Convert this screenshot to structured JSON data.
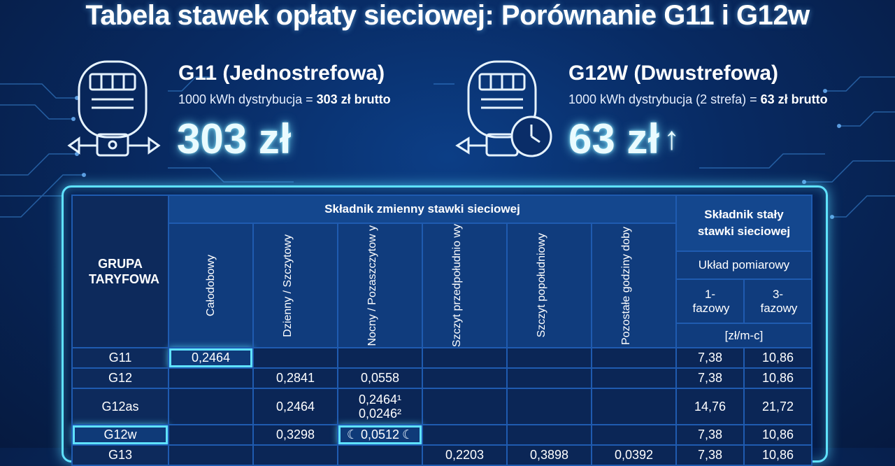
{
  "title": "Tabela stawek opłaty sieciowej: Porównanie G11 i G12w",
  "colors": {
    "accent": "#5fe2ff",
    "background": "#082a62",
    "cell_border": "#1f5bb0"
  },
  "left_panel": {
    "icon": "electric-meter-icon",
    "name": "G11 (Jednostrefowa)",
    "desc_prefix": "1000 kWh dystrybucja = ",
    "desc_bold": "303 zł brutto",
    "big_value": "303 zł"
  },
  "right_panel": {
    "icon": "electric-meter-clock-icon",
    "name": "G12W (Dwustrefowa)",
    "desc_prefix": "1000 kWh dystrybucja (2 strefa) = ",
    "desc_bold": "63 zł brutto",
    "big_value": "63 zł",
    "arrow": "↑"
  },
  "table": {
    "group_header": "GRUPA TARYFOWA",
    "variable_header": "Składnik zmienny stawki sieciowej",
    "fixed_header": "Składnik stały stawki sieciowej",
    "meter_header": "Układ pomiarowy",
    "phase1": "1-fazowy",
    "phase3": "3-fazowy",
    "unit": "[zł/m-c]",
    "columns": [
      "Całodobowy",
      "Dzienny / Szczytowy",
      "Nocny / Pozaszczytow y",
      "Szczyt przedpołudnio wy",
      "Szczyt popołudniowy",
      "Pozostałe godziny doby"
    ],
    "rows": [
      {
        "group": "G11",
        "calodobowy": "0,2464",
        "dzienny": "",
        "nocny": "",
        "przedpol": "",
        "popol": "",
        "pozostale": "",
        "f1": "7,38",
        "f3": "10,86"
      },
      {
        "group": "G12",
        "calodobowy": "",
        "dzienny": "0,2841",
        "nocny": "0,0558",
        "przedpol": "",
        "popol": "",
        "pozostale": "",
        "f1": "7,38",
        "f3": "10,86"
      },
      {
        "group": "G12as",
        "calodobowy": "",
        "dzienny": "0,2464",
        "nocny": "0,2464¹",
        "nocny2": "0,0246²",
        "przedpol": "",
        "popol": "",
        "pozostale": "",
        "f1": "14,76",
        "f3": "21,72"
      },
      {
        "group": "G12w",
        "calodobowy": "",
        "dzienny": "0,3298",
        "nocny": "0,0512",
        "przedpol": "",
        "popol": "",
        "pozostale": "",
        "f1": "7,38",
        "f3": "10,86"
      },
      {
        "group": "G13",
        "calodobowy": "",
        "dzienny": "",
        "nocny": "",
        "przedpol": "0,2203",
        "popol": "0,3898",
        "pozostale": "0,0392",
        "f1": "7,38",
        "f3": "10,86"
      }
    ]
  }
}
